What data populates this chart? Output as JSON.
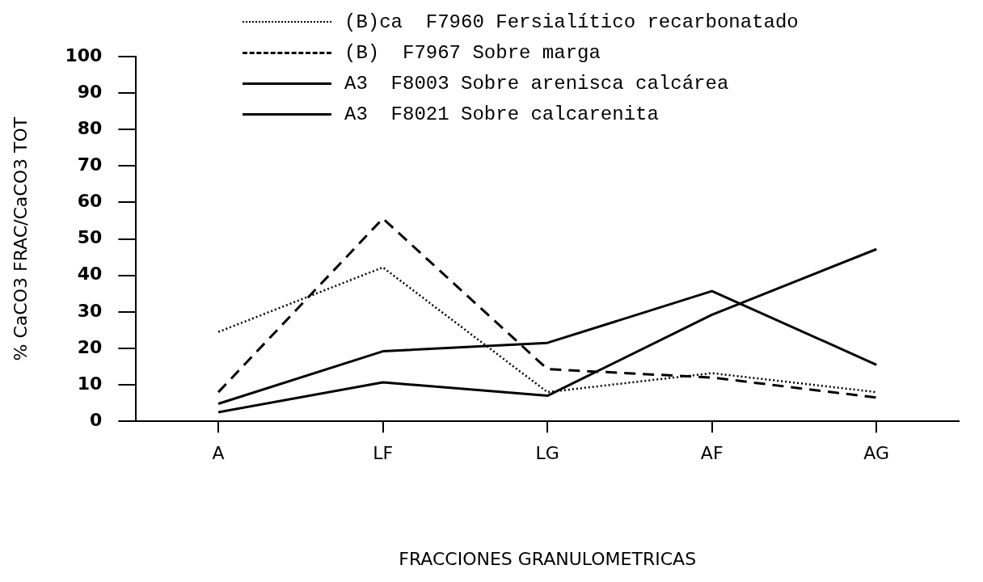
{
  "chart_data": {
    "type": "line",
    "xlabel": "FRACCIONES GRANULOMETRICAS",
    "ylabel": "% CaCO3 FRAC/CaCO3 TOT",
    "categories": [
      "A",
      "LF",
      "LG",
      "AF",
      "AG"
    ],
    "series": [
      {
        "name": "(B)ca  F7960 Fersialítico recarbonatado",
        "color": "#000000",
        "line_style": "dotted",
        "values": [
          24.5,
          42.2,
          8,
          13.2,
          8
        ]
      },
      {
        "name": "(B)  F7967 Sobre marga",
        "color": "#000000",
        "line_style": "dashed",
        "values": [
          8,
          55.6,
          14.3,
          12,
          6.5
        ]
      },
      {
        "name": "A3  F8003 Sobre arenisca calcárea",
        "color": "#000000",
        "line_style": "solid",
        "values": [
          4.8,
          19.2,
          21.5,
          35.7,
          15.5
        ]
      },
      {
        "name": "A3  F8021 Sobre calcarenita",
        "color": "#000000",
        "line_style": "solid",
        "values": [
          2.5,
          10.7,
          7,
          29.2,
          47.2
        ]
      }
    ],
    "ylim": [
      0,
      100
    ],
    "yticks": [
      0,
      10,
      20,
      30,
      40,
      50,
      60,
      70,
      80,
      90,
      100
    ],
    "grid": false,
    "legend": "top",
    "marker": "none"
  }
}
